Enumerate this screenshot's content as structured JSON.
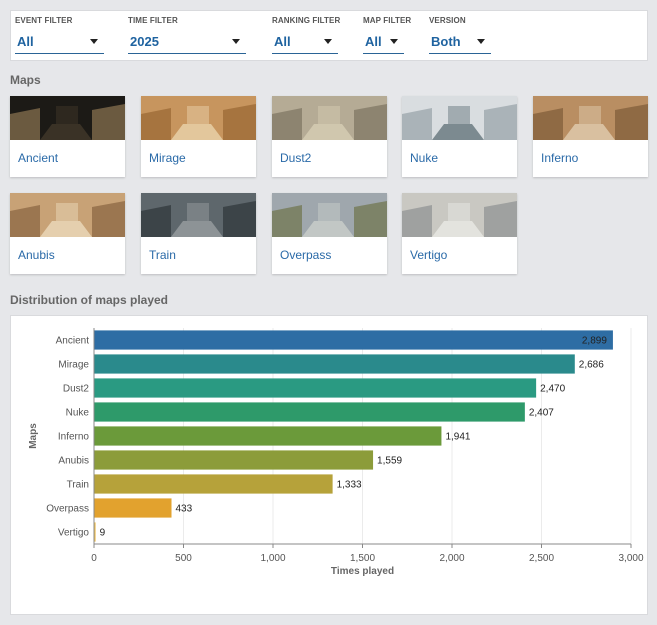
{
  "filters": [
    {
      "label": "EVENT FILTER",
      "value": "All"
    },
    {
      "label": "TIME FILTER",
      "value": "2025"
    },
    {
      "label": "RANKING FILTER",
      "value": "All"
    },
    {
      "label": "MAP FILTER",
      "value": "All"
    },
    {
      "label": "VERSION",
      "value": "Both"
    }
  ],
  "maps_section": {
    "title": "Maps"
  },
  "maps": [
    {
      "name": "Ancient",
      "palette": [
        "#1c1a16",
        "#6b5a40",
        "#3a3226"
      ]
    },
    {
      "name": "Mirage",
      "palette": [
        "#c7955e",
        "#a6743f",
        "#e3c79c"
      ]
    },
    {
      "name": "Dust2",
      "palette": [
        "#b5ab95",
        "#8d8470",
        "#d0c7ae"
      ]
    },
    {
      "name": "Nuke",
      "palette": [
        "#d9dde0",
        "#aab3b8",
        "#7c8a90"
      ]
    },
    {
      "name": "Inferno",
      "palette": [
        "#b98e62",
        "#8f6a44",
        "#d9c0a0"
      ]
    },
    {
      "name": "Anubis",
      "palette": [
        "#c8a276",
        "#9b7650",
        "#e5cfae"
      ]
    },
    {
      "name": "Train",
      "palette": [
        "#5e676c",
        "#3c4448",
        "#8d9396"
      ]
    },
    {
      "name": "Overpass",
      "palette": [
        "#9fa7ad",
        "#7d8368",
        "#c2c7c5"
      ]
    },
    {
      "name": "Vertigo",
      "palette": [
        "#c9c8c2",
        "#9fa1a0",
        "#e3e3de"
      ]
    }
  ],
  "chart_section": {
    "title": "Distribution of maps played"
  },
  "chart_data": {
    "type": "bar",
    "orientation": "horizontal",
    "categories": [
      "Ancient",
      "Mirage",
      "Dust2",
      "Nuke",
      "Inferno",
      "Anubis",
      "Train",
      "Overpass",
      "Vertigo"
    ],
    "values": [
      2899,
      2686,
      2470,
      2407,
      1941,
      1559,
      1333,
      433,
      9
    ],
    "value_labels": [
      "2,899",
      "2,686",
      "2,470",
      "2,407",
      "1,941",
      "1,559",
      "1,333",
      "433",
      "9"
    ],
    "colors": [
      "#2e6da4",
      "#2a8a8c",
      "#2a9a82",
      "#2e9a6a",
      "#6b9a3a",
      "#8c9c3a",
      "#b6a23a",
      "#e2a22e",
      "#f0c050"
    ],
    "xlabel": "Times played",
    "ylabel": "Maps",
    "xlim": [
      0,
      3000
    ],
    "xticks": [
      0,
      500,
      1000,
      1500,
      2000,
      2500,
      3000
    ],
    "xtick_labels": [
      "0",
      "500",
      "1,000",
      "1,500",
      "2,000",
      "2,500",
      "3,000"
    ],
    "grid": true,
    "legend": "none"
  }
}
